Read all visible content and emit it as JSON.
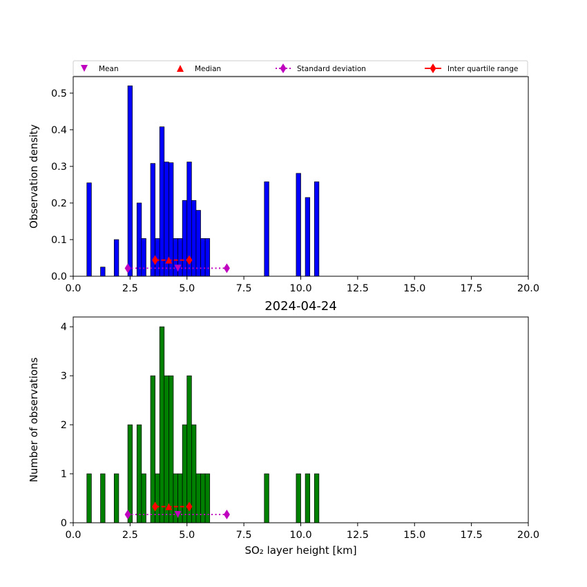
{
  "chart_data": [
    {
      "type": "bar",
      "title": "",
      "xlabel": "",
      "ylabel": "Observation density",
      "xlim": [
        0,
        20
      ],
      "ylim": [
        0,
        0.545
      ],
      "xticks": [
        "0.0",
        "2.5",
        "5.0",
        "7.5",
        "10.0",
        "12.5",
        "15.0",
        "17.5",
        "20.0"
      ],
      "yticks": [
        "0.0",
        "0.1",
        "0.2",
        "0.3",
        "0.4",
        "0.5"
      ],
      "bin_width": 0.2,
      "bar_color": "#0000ff",
      "bars": [
        {
          "x": 0.7,
          "y": 0.255
        },
        {
          "x": 1.3,
          "y": 0.025
        },
        {
          "x": 1.9,
          "y": 0.1
        },
        {
          "x": 2.5,
          "y": 0.52
        },
        {
          "x": 2.9,
          "y": 0.2
        },
        {
          "x": 3.1,
          "y": 0.103
        },
        {
          "x": 3.5,
          "y": 0.308
        },
        {
          "x": 3.7,
          "y": 0.103
        },
        {
          "x": 3.9,
          "y": 0.408
        },
        {
          "x": 4.1,
          "y": 0.312
        },
        {
          "x": 4.3,
          "y": 0.31
        },
        {
          "x": 4.5,
          "y": 0.103
        },
        {
          "x": 4.7,
          "y": 0.103
        },
        {
          "x": 4.9,
          "y": 0.207
        },
        {
          "x": 5.1,
          "y": 0.312
        },
        {
          "x": 5.3,
          "y": 0.207
        },
        {
          "x": 5.5,
          "y": 0.18
        },
        {
          "x": 5.7,
          "y": 0.103
        },
        {
          "x": 5.9,
          "y": 0.103
        },
        {
          "x": 8.5,
          "y": 0.258
        },
        {
          "x": 9.9,
          "y": 0.281
        },
        {
          "x": 10.3,
          "y": 0.215
        },
        {
          "x": 10.7,
          "y": 0.258
        }
      ],
      "stats": {
        "mean": {
          "x": 4.6,
          "y": 0.022
        },
        "median": {
          "x": 4.2,
          "y": 0.044
        },
        "std_range": {
          "x": [
            2.4,
            6.75
          ],
          "y": 0.022
        },
        "iqr_range": {
          "x": [
            3.6,
            5.1
          ],
          "y": 0.044
        }
      }
    },
    {
      "type": "bar",
      "title": "2024-04-24",
      "xlabel": "SO₂ layer height [km]",
      "ylabel": "Number of observations",
      "xlim": [
        0,
        20
      ],
      "ylim": [
        0,
        4.2
      ],
      "xticks": [
        "0.0",
        "2.5",
        "5.0",
        "7.5",
        "10.0",
        "12.5",
        "15.0",
        "17.5",
        "20.0"
      ],
      "yticks": [
        "0",
        "1",
        "2",
        "3",
        "4"
      ],
      "bin_width": 0.2,
      "bar_color": "#008000",
      "bars": [
        {
          "x": 0.7,
          "y": 1
        },
        {
          "x": 1.3,
          "y": 1
        },
        {
          "x": 1.9,
          "y": 1
        },
        {
          "x": 2.5,
          "y": 2
        },
        {
          "x": 2.9,
          "y": 2
        },
        {
          "x": 3.1,
          "y": 1
        },
        {
          "x": 3.5,
          "y": 3
        },
        {
          "x": 3.7,
          "y": 1
        },
        {
          "x": 3.9,
          "y": 4
        },
        {
          "x": 4.1,
          "y": 3
        },
        {
          "x": 4.3,
          "y": 3
        },
        {
          "x": 4.5,
          "y": 1
        },
        {
          "x": 4.7,
          "y": 1
        },
        {
          "x": 4.9,
          "y": 2
        },
        {
          "x": 5.1,
          "y": 3
        },
        {
          "x": 5.3,
          "y": 2
        },
        {
          "x": 5.5,
          "y": 1
        },
        {
          "x": 5.7,
          "y": 1
        },
        {
          "x": 5.9,
          "y": 1
        },
        {
          "x": 8.5,
          "y": 1
        },
        {
          "x": 9.9,
          "y": 1
        },
        {
          "x": 10.3,
          "y": 1
        },
        {
          "x": 10.7,
          "y": 1
        }
      ],
      "stats": {
        "mean": {
          "x": 4.6,
          "y": 0.17
        },
        "median": {
          "x": 4.2,
          "y": 0.33
        },
        "std_range": {
          "x": [
            2.4,
            6.75
          ],
          "y": 0.17
        },
        "iqr_range": {
          "x": [
            3.6,
            5.1
          ],
          "y": 0.33
        }
      }
    }
  ],
  "legend": {
    "placement": "above top chart",
    "entries": [
      {
        "label": "Mean",
        "marker": "triangle-down",
        "color": "#bf00bf"
      },
      {
        "label": "Median",
        "marker": "triangle-up",
        "color": "#ff0000"
      },
      {
        "label": "Standard deviation",
        "marker": "diamond",
        "line": "dotted",
        "color": "#bf00bf"
      },
      {
        "label": "Inter quartile range",
        "marker": "diamond",
        "line": "solid",
        "color": "#ff0000"
      }
    ]
  },
  "colors": {
    "mean": "#bf00bf",
    "median": "#ff0000",
    "std": "#bf00bf",
    "iqr": "#ff0000",
    "bar_edge": "#000000"
  }
}
